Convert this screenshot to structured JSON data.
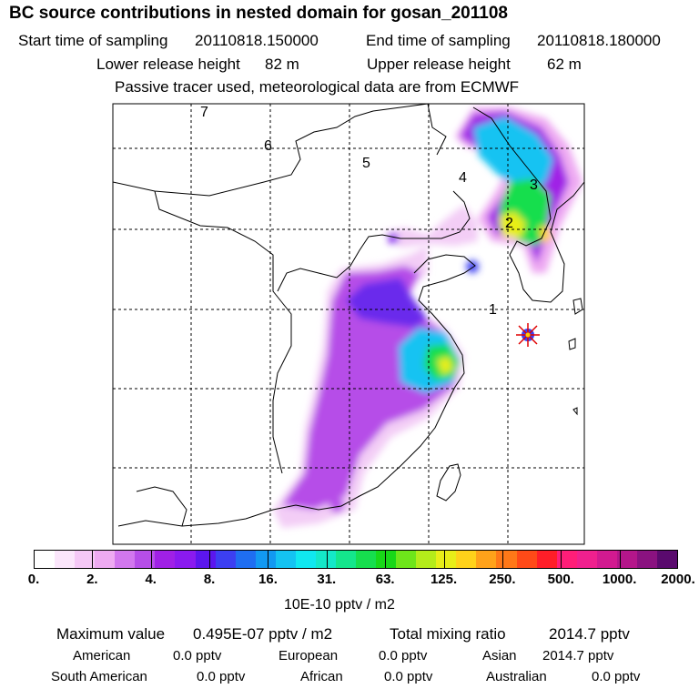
{
  "header": {
    "title": "BC  source contributions in nested domain for gosan_201108",
    "start_label": "Start time of sampling",
    "start_value": "20110818.150000",
    "end_label": "End time of sampling",
    "end_value": "20110818.180000",
    "lower_label": "Lower release height",
    "lower_value": "82 m",
    "upper_label": "Upper release height",
    "upper_value": "62 m",
    "note": "Passive tracer used, meteorological data are from ECMWF"
  },
  "map": {
    "day_labels": [
      "1",
      "2",
      "3",
      "4",
      "5",
      "6",
      "7"
    ],
    "receptor": "gosan"
  },
  "colorbar": {
    "ticks": [
      "0.",
      "2.",
      "4.",
      "8.",
      "16.",
      "31.",
      "63.",
      "125.",
      "250.",
      "500.",
      "1000.",
      "2000."
    ],
    "colors": [
      "#ffffff",
      "#fbe6fb",
      "#f5c8f6",
      "#eeaaf2",
      "#d277ee",
      "#b64ee8",
      "#a020e6",
      "#8a1aef",
      "#5b16ee",
      "#3c3ff2",
      "#1f6ef2",
      "#1299f2",
      "#14c3f2",
      "#10e8f0",
      "#14e8c8",
      "#14e68c",
      "#16de4e",
      "#18d818",
      "#6ee61a",
      "#b4ec1a",
      "#e8ee18",
      "#ffd21a",
      "#ffa21a",
      "#ff7818",
      "#ff4a18",
      "#ff1e28",
      "#ff1e78",
      "#f0208e",
      "#d21a90",
      "#b4168a",
      "#8a1280",
      "#5a0a6e"
    ],
    "unit": "10E-10 pptv / m2"
  },
  "stats": {
    "max_label": "Maximum value",
    "max_value": "0.495E-07 pptv / m2",
    "total_label": "Total mixing ratio",
    "total_value": "2014.7 pptv",
    "american_label": "American",
    "american_value": "0.0 pptv",
    "european_label": "European",
    "european_value": "0.0 pptv",
    "asian_label": "Asian",
    "asian_value": "2014.7 pptv",
    "south_american_label": "South American",
    "south_american_value": "0.0 pptv",
    "african_label": "African",
    "african_value": "0.0 pptv",
    "australian_label": "Australian",
    "australian_value": "0.0 pptv"
  }
}
